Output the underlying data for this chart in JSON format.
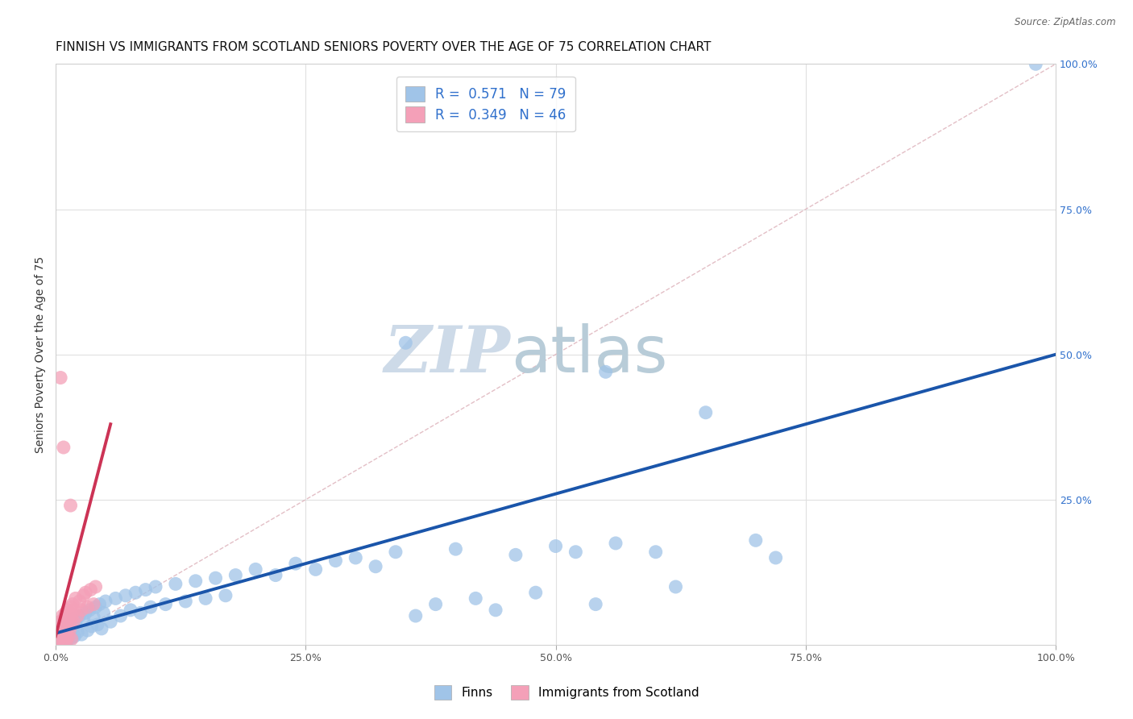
{
  "title": "FINNISH VS IMMIGRANTS FROM SCOTLAND SENIORS POVERTY OVER THE AGE OF 75 CORRELATION CHART",
  "source": "Source: ZipAtlas.com",
  "ylabel": "Seniors Poverty Over the Age of 75",
  "xlim": [
    0.0,
    1.0
  ],
  "ylim": [
    0.0,
    1.0
  ],
  "xticks": [
    0.0,
    0.25,
    0.5,
    0.75,
    1.0
  ],
  "yticks": [
    0.0,
    0.25,
    0.5,
    0.75,
    1.0
  ],
  "xticklabels": [
    "0.0%",
    "25.0%",
    "50.0%",
    "75.0%",
    "100.0%"
  ],
  "right_yticklabels": [
    "25.0%",
    "50.0%",
    "75.0%",
    "100.0%"
  ],
  "R_finns": 0.571,
  "N_finns": 79,
  "R_scots": 0.349,
  "N_scots": 46,
  "finns_color": "#a0c4e8",
  "scots_color": "#f4a0b8",
  "trend_blue": "#1a55aa",
  "trend_pink": "#cc3355",
  "diagonal_color": "#e0b8c0",
  "grid_color": "#e0e0e0",
  "right_tick_color": "#3070cc",
  "background": "#ffffff",
  "watermark_zip_color": "#cddae8",
  "watermark_atlas_color": "#b8ccd8",
  "title_fontsize": 11,
  "ylabel_fontsize": 10,
  "tick_fontsize": 9,
  "legend_fontsize": 12,
  "source_fontsize": 8.5,
  "finn_scatter": [
    [
      0.003,
      0.01
    ],
    [
      0.005,
      0.02
    ],
    [
      0.006,
      0.005
    ],
    [
      0.007,
      0.015
    ],
    [
      0.008,
      0.025
    ],
    [
      0.009,
      0.01
    ],
    [
      0.01,
      0.03
    ],
    [
      0.011,
      0.018
    ],
    [
      0.012,
      0.008
    ],
    [
      0.013,
      0.035
    ],
    [
      0.014,
      0.02
    ],
    [
      0.015,
      0.04
    ],
    [
      0.016,
      0.012
    ],
    [
      0.017,
      0.028
    ],
    [
      0.018,
      0.045
    ],
    [
      0.019,
      0.015
    ],
    [
      0.02,
      0.038
    ],
    [
      0.022,
      0.022
    ],
    [
      0.024,
      0.05
    ],
    [
      0.026,
      0.018
    ],
    [
      0.028,
      0.042
    ],
    [
      0.03,
      0.055
    ],
    [
      0.032,
      0.025
    ],
    [
      0.034,
      0.06
    ],
    [
      0.036,
      0.032
    ],
    [
      0.038,
      0.048
    ],
    [
      0.04,
      0.065
    ],
    [
      0.042,
      0.035
    ],
    [
      0.044,
      0.07
    ],
    [
      0.046,
      0.028
    ],
    [
      0.048,
      0.055
    ],
    [
      0.05,
      0.075
    ],
    [
      0.055,
      0.04
    ],
    [
      0.06,
      0.08
    ],
    [
      0.065,
      0.05
    ],
    [
      0.07,
      0.085
    ],
    [
      0.075,
      0.06
    ],
    [
      0.08,
      0.09
    ],
    [
      0.085,
      0.055
    ],
    [
      0.09,
      0.095
    ],
    [
      0.095,
      0.065
    ],
    [
      0.1,
      0.1
    ],
    [
      0.11,
      0.07
    ],
    [
      0.12,
      0.105
    ],
    [
      0.13,
      0.075
    ],
    [
      0.14,
      0.11
    ],
    [
      0.15,
      0.08
    ],
    [
      0.16,
      0.115
    ],
    [
      0.17,
      0.085
    ],
    [
      0.18,
      0.12
    ],
    [
      0.2,
      0.13
    ],
    [
      0.22,
      0.12
    ],
    [
      0.24,
      0.14
    ],
    [
      0.26,
      0.13
    ],
    [
      0.28,
      0.145
    ],
    [
      0.3,
      0.15
    ],
    [
      0.32,
      0.135
    ],
    [
      0.34,
      0.16
    ],
    [
      0.36,
      0.05
    ],
    [
      0.38,
      0.07
    ],
    [
      0.4,
      0.165
    ],
    [
      0.42,
      0.08
    ],
    [
      0.44,
      0.06
    ],
    [
      0.46,
      0.155
    ],
    [
      0.48,
      0.09
    ],
    [
      0.5,
      0.17
    ],
    [
      0.52,
      0.16
    ],
    [
      0.54,
      0.07
    ],
    [
      0.56,
      0.175
    ],
    [
      0.6,
      0.16
    ],
    [
      0.62,
      0.1
    ],
    [
      0.65,
      0.4
    ],
    [
      0.7,
      0.18
    ],
    [
      0.72,
      0.15
    ],
    [
      0.35,
      0.52
    ],
    [
      0.55,
      0.47
    ],
    [
      0.98,
      1.0
    ]
  ],
  "scot_scatter": [
    [
      0.002,
      0.005
    ],
    [
      0.003,
      0.015
    ],
    [
      0.003,
      0.025
    ],
    [
      0.004,
      0.01
    ],
    [
      0.004,
      0.035
    ],
    [
      0.005,
      0.02
    ],
    [
      0.005,
      0.04
    ],
    [
      0.006,
      0.008
    ],
    [
      0.006,
      0.03
    ],
    [
      0.007,
      0.05
    ],
    [
      0.007,
      0.015
    ],
    [
      0.008,
      0.045
    ],
    [
      0.008,
      0.025
    ],
    [
      0.009,
      0.035
    ],
    [
      0.009,
      0.01
    ],
    [
      0.01,
      0.055
    ],
    [
      0.01,
      0.02
    ],
    [
      0.011,
      0.04
    ],
    [
      0.011,
      0.008
    ],
    [
      0.012,
      0.06
    ],
    [
      0.012,
      0.03
    ],
    [
      0.013,
      0.048
    ],
    [
      0.013,
      0.015
    ],
    [
      0.014,
      0.055
    ],
    [
      0.014,
      0.025
    ],
    [
      0.015,
      0.065
    ],
    [
      0.015,
      0.035
    ],
    [
      0.016,
      0.05
    ],
    [
      0.016,
      0.01
    ],
    [
      0.017,
      0.07
    ],
    [
      0.018,
      0.04
    ],
    [
      0.019,
      0.06
    ],
    [
      0.02,
      0.08
    ],
    [
      0.022,
      0.05
    ],
    [
      0.024,
      0.075
    ],
    [
      0.026,
      0.06
    ],
    [
      0.028,
      0.085
    ],
    [
      0.03,
      0.09
    ],
    [
      0.032,
      0.065
    ],
    [
      0.035,
      0.095
    ],
    [
      0.038,
      0.07
    ],
    [
      0.04,
      0.1
    ],
    [
      0.005,
      0.46
    ],
    [
      0.008,
      0.34
    ],
    [
      0.015,
      0.24
    ],
    [
      0.002,
      0.005
    ]
  ],
  "finns_trend_x0": 0.0,
  "finns_trend_y0": 0.02,
  "finns_trend_x1": 1.0,
  "finns_trend_y1": 0.5,
  "scots_trend_x0": 0.0,
  "scots_trend_y0": 0.015,
  "scots_trend_x1": 0.055,
  "scots_trend_y1": 0.38
}
